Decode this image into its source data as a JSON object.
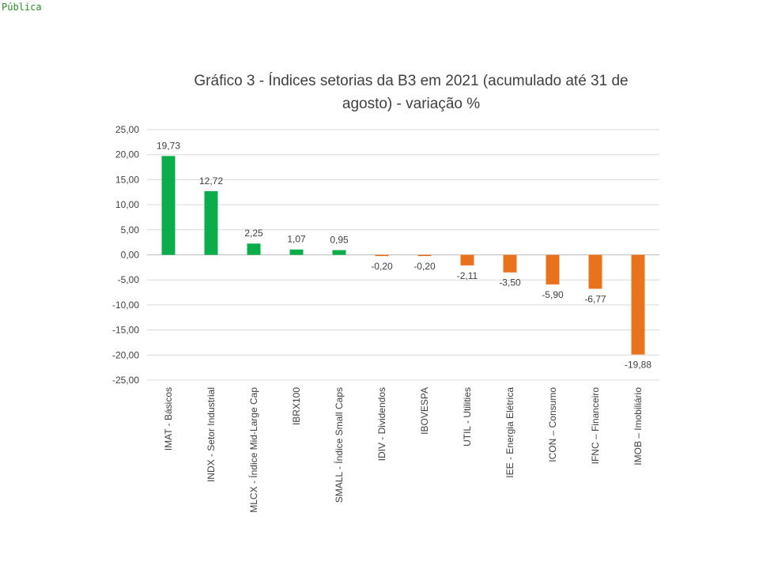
{
  "header": {
    "classification": "Pública"
  },
  "chart_data": {
    "type": "bar",
    "title": "Gráfico 3 - Índices setorias da B3 em 2021 (acumulado até 31 de agosto) - variação %",
    "xlabel": "",
    "ylabel": "",
    "ylim": [
      -25,
      25
    ],
    "yticks": [
      25,
      20,
      15,
      10,
      5,
      0,
      -5,
      -10,
      -15,
      -20,
      -25
    ],
    "ytick_labels": [
      "25,00",
      "20,00",
      "15,00",
      "10,00",
      "5,00",
      "0,00",
      "-5,00",
      "-10,00",
      "-15,00",
      "-20,00",
      "-25,00"
    ],
    "grid": true,
    "legend": "none",
    "positive_color": "#0aad4a",
    "negative_color": "#e8731c",
    "categories": [
      "IMAT - Básicos",
      "INDX - Setor Industrial",
      "MLCX - Índice Mid-Large Cap",
      "IBRX100",
      "SMALL - Índice Small Caps",
      "IDIV - Dividendos",
      "IBOVESPA",
      "UTIL - Utilities",
      "IEE - Energia Elétrica",
      "ICON – Consumo",
      "IFNC – Financeiro",
      "IMOB – Imobiliário"
    ],
    "values": [
      19.73,
      12.72,
      2.25,
      1.07,
      0.95,
      -0.2,
      -0.2,
      -2.11,
      -3.5,
      -5.9,
      -6.77,
      -19.88
    ],
    "value_labels": [
      "19,73",
      "12,72",
      "2,25",
      "1,07",
      "0,95",
      "-0,20",
      "-0,20",
      "-2,11",
      "-3,50",
      "-5,90",
      "-6,77",
      "-19,88"
    ]
  }
}
